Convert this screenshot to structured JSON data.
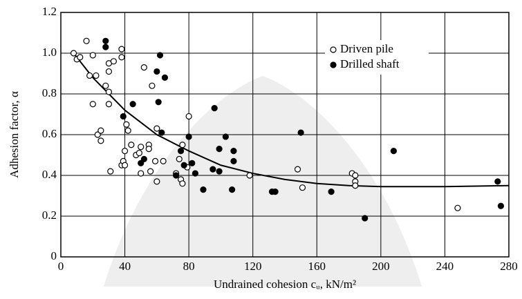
{
  "chart_data": {
    "type": "scatter",
    "xlabel": "Undrained cohesion cᵤ, kN/m²",
    "ylabel": "Adhesion factor, α",
    "xlim": [
      0,
      280
    ],
    "ylim": [
      0,
      1.2
    ],
    "xticks": [
      0,
      40,
      80,
      120,
      160,
      200,
      240,
      280
    ],
    "yticks": [
      {
        "value": 0,
        "label": "0"
      },
      {
        "value": 0.2,
        "label": "0.2"
      },
      {
        "value": 0.4,
        "label": "0.4"
      },
      {
        "value": 0.6,
        "label": "0.6"
      },
      {
        "value": 0.8,
        "label": "0.8"
      },
      {
        "value": 1.0,
        "label": "1.0"
      },
      {
        "value": 1.2,
        "label": "1.2"
      }
    ],
    "grid": true,
    "legend": "upper right",
    "series": [
      {
        "name": "Driven pile",
        "color": "#000000",
        "marker": "open",
        "x": [
          8,
          10,
          12,
          16,
          18,
          20,
          20,
          22,
          23,
          25,
          25,
          28,
          30,
          30,
          30,
          30,
          31,
          33,
          38,
          38,
          38,
          39,
          40,
          40,
          41,
          42,
          44,
          47,
          49,
          50,
          50,
          52,
          55,
          55,
          56,
          57,
          59,
          60,
          60,
          64,
          72,
          74,
          75,
          76,
          76,
          79,
          80,
          118,
          148,
          151,
          182,
          184,
          184,
          184,
          248
        ],
        "values": [
          1.0,
          0.97,
          0.98,
          1.06,
          0.89,
          0.99,
          0.75,
          0.89,
          0.6,
          0.62,
          0.57,
          0.84,
          0.95,
          0.91,
          0.75,
          0.81,
          0.42,
          0.96,
          0.98,
          1.02,
          0.45,
          0.47,
          0.45,
          0.52,
          0.65,
          0.62,
          0.55,
          0.5,
          0.51,
          0.54,
          0.41,
          0.93,
          0.55,
          0.53,
          0.42,
          0.84,
          0.47,
          0.37,
          0.63,
          0.47,
          0.41,
          0.48,
          0.38,
          0.55,
          0.36,
          0.44,
          0.69,
          0.4,
          0.43,
          0.34,
          0.41,
          0.4,
          0.37,
          0.35,
          0.24
        ]
      },
      {
        "name": "Drilled shaft",
        "color": "#000000",
        "marker": "filled",
        "x": [
          28,
          28,
          39,
          45,
          50,
          52,
          60,
          61,
          62,
          65,
          63,
          72,
          75,
          77,
          80,
          82,
          84,
          89,
          95,
          96,
          99,
          99,
          103,
          107,
          108,
          108,
          132,
          134,
          150,
          169,
          190,
          208,
          273,
          275
        ],
        "values": [
          1.06,
          1.03,
          0.69,
          0.75,
          0.46,
          0.48,
          0.91,
          0.76,
          0.99,
          0.88,
          0.61,
          0.4,
          0.52,
          0.45,
          0.59,
          0.46,
          0.41,
          0.33,
          0.43,
          0.73,
          0.53,
          0.42,
          0.59,
          0.33,
          0.47,
          0.52,
          0.32,
          0.32,
          0.61,
          0.32,
          0.19,
          0.52,
          0.37,
          0.25
        ]
      }
    ],
    "trend": {
      "x": [
        8,
        20,
        40,
        60,
        80,
        100,
        120,
        140,
        160,
        180,
        200,
        240,
        280
      ],
      "values": [
        1.0,
        0.88,
        0.72,
        0.6,
        0.52,
        0.45,
        0.41,
        0.38,
        0.36,
        0.35,
        0.345,
        0.345,
        0.35
      ]
    }
  }
}
